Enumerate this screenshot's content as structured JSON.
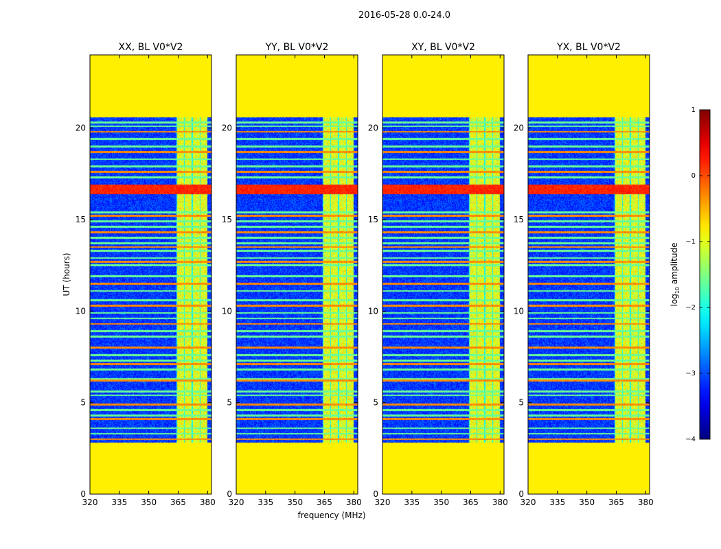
{
  "chart_data": {
    "type": "heatmap",
    "suptitle": "2016-05-28 0.0-24.0",
    "shared_xlabel": "frequency (MHz)",
    "ylabel": "UT (hours)",
    "xlim": [
      320,
      382
    ],
    "ylim": [
      0,
      24
    ],
    "xticks": [
      320,
      335,
      350,
      365,
      380
    ],
    "yticks": [
      0,
      5,
      10,
      15,
      20
    ],
    "data_time_range_hours": [
      2.8,
      20.6
    ],
    "masked_fill_value_log10": -0.8,
    "panels": [
      {
        "title": "XX, BL V0*V2"
      },
      {
        "title": "YY, BL V0*V2"
      },
      {
        "title": "XY, BL V0*V2"
      },
      {
        "title": "YX, BL V0*V2"
      }
    ],
    "colorbar": {
      "label_main": "log",
      "label_sub": "10",
      "label_rest": " amplitude",
      "range": [
        -4,
        1
      ],
      "ticks": [
        "1",
        "0",
        "−1",
        "−2",
        "−3",
        "−4"
      ],
      "tick_values": [
        1,
        0,
        -1,
        -2,
        -3,
        -4
      ],
      "colormap": "jet"
    },
    "features": {
      "background_log10": -3.1,
      "bright_band_mhz": [
        364,
        380
      ],
      "bright_band_log10": -1.0,
      "strong_rfi_hours": [
        16.4,
        16.9
      ],
      "strong_rfi_log10": 0.2,
      "rfi_line_hours": [
        3.0,
        3.3,
        3.6,
        4.1,
        4.3,
        4.6,
        4.9,
        5.4,
        5.6,
        6.2,
        6.3,
        6.8,
        7.1,
        7.3,
        7.6,
        8.0,
        8.6,
        8.9,
        9.3,
        9.6,
        9.9,
        10.3,
        10.6,
        11.1,
        11.5,
        11.9,
        12.5,
        12.7,
        12.9,
        13.3,
        13.5,
        13.7,
        14.0,
        14.3,
        14.6,
        14.9,
        15.2,
        15.4,
        17.3,
        17.6,
        17.9,
        18.3,
        18.7,
        19.0,
        19.4,
        19.8,
        20.1,
        20.3
      ]
    }
  }
}
